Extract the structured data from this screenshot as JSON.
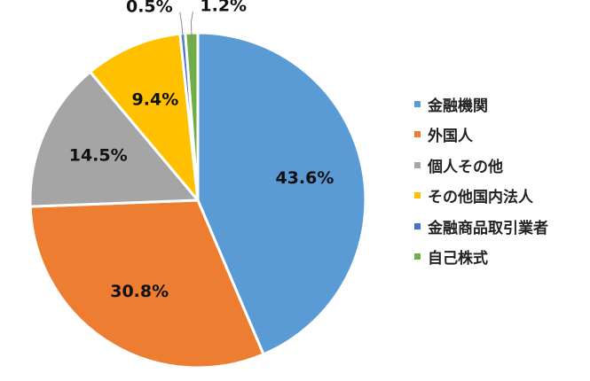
{
  "chart_data": {
    "type": "pie",
    "title": "",
    "start_angle_deg": 0,
    "direction": "clockwise",
    "legend_position": "right",
    "slices": [
      {
        "name": "金融機関",
        "value": 43.6,
        "label": "43.6%",
        "color": "#5B9BD5"
      },
      {
        "name": "外国人",
        "value": 30.8,
        "label": "30.8%",
        "color": "#ED7D31"
      },
      {
        "name": "個人その他",
        "value": 14.5,
        "label": "14.5%",
        "color": "#A5A5A5"
      },
      {
        "name": "その他国内法人",
        "value": 9.4,
        "label": "9.4%",
        "color": "#FFC000"
      },
      {
        "name": "金融商品取引業者",
        "value": 0.5,
        "label": "0.5%",
        "color": "#4472C4"
      },
      {
        "name": "自己株式",
        "value": 1.2,
        "label": "1.2%",
        "color": "#70AD47"
      }
    ]
  }
}
